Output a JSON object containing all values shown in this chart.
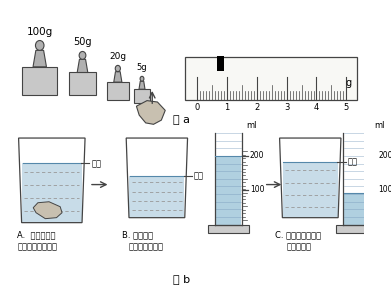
{
  "title_a": "图 a",
  "title_b": "图 b",
  "bg_color": "#ffffff",
  "line_color": "#444444",
  "dash_color": "#999999",
  "water_color": "#c8dce8",
  "cylinder_water_color": "#b0d0e0",
  "weight_fill": "#c8c8c8",
  "weight_neck": "#b0b0b0",
  "ruler_fill": "#f8f8f5",
  "rock_fill": "#c8c0b0",
  "step_a_label": "A.  加水到标记",
  "step_a_sub": "（矿石浸没水中）",
  "step_b_label": "B. 取出矿石",
  "step_b_sub": "（准备补充水）",
  "step_c_label": "C. 将量筒中水倒入",
  "step_c_sub": "杯中至标记",
  "mark_label": "标记",
  "ml_label": "ml"
}
